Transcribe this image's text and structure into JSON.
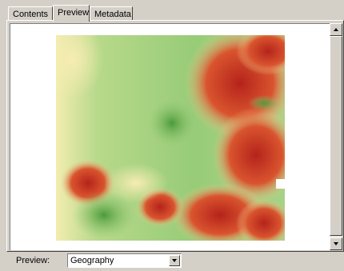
{
  "tabs": [
    {
      "label": "Contents"
    },
    {
      "label": "Preview"
    },
    {
      "label": "Metadata"
    }
  ],
  "active_tab": "Preview",
  "preview": {
    "label": "Preview:",
    "selected": "Geography"
  },
  "scrollbar": {
    "up_icon": "arrow-up-icon",
    "down_icon": "arrow-down-icon"
  },
  "colors": {
    "low": "#6fb84f",
    "mid": "#eee9a0",
    "high": "#c8281e"
  }
}
